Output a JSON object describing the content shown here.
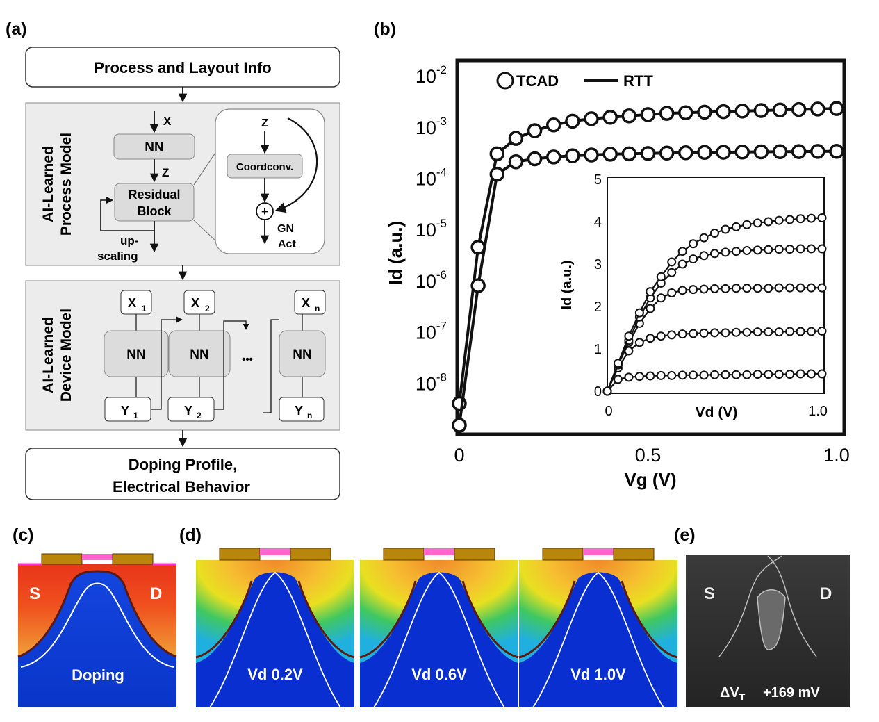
{
  "panels": {
    "a": {
      "label": "(a)",
      "top_box": "Process and Layout Info",
      "process_model": {
        "side_title_1": "AI-Learned",
        "side_title_2": "Process Model",
        "input_x": "X",
        "nn": "NN",
        "z": "Z",
        "residual_1": "Residual",
        "residual_2": "Block",
        "upscaling_1": "up-",
        "upscaling_2": "scaling",
        "inset_z": "Z",
        "coordconv": "Coordconv.",
        "plus": "+",
        "gn": "GN",
        "act": "Act"
      },
      "device_model": {
        "side_title_1": "AI-Learned",
        "side_title_2": "Device Model",
        "inputs": [
          {
            "base": "X",
            "sub": "1"
          },
          {
            "base": "X",
            "sub": "2"
          },
          {
            "base": "X",
            "sub": "n"
          }
        ],
        "nn": "NN",
        "outputs": [
          {
            "base": "Y",
            "sub": "1"
          },
          {
            "base": "Y",
            "sub": "2"
          },
          {
            "base": "Y",
            "sub": "n"
          }
        ],
        "ellipsis": "•••"
      },
      "bottom_box_1": "Doping Profile,",
      "bottom_box_2": "Electrical Behavior"
    },
    "b": {
      "label": "(b)",
      "chart_data": [
        {
          "type": "line",
          "xlabel": "Vg (V)",
          "ylabel": "Id (a.u.)",
          "xlim": [
            0,
            1.0
          ],
          "ylim_log10": [
            -9,
            -1.7
          ],
          "y_scale": "log",
          "x_ticks": [
            "0",
            "0.5",
            "1.0"
          ],
          "y_ticks": [
            {
              "base": "10",
              "exp": "-2"
            },
            {
              "base": "10",
              "exp": "-3"
            },
            {
              "base": "10",
              "exp": "-4"
            },
            {
              "base": "10",
              "exp": "-5"
            },
            {
              "base": "10",
              "exp": "-6"
            },
            {
              "base": "10",
              "exp": "-7"
            },
            {
              "base": "10",
              "exp": "-8"
            }
          ],
          "legend": {
            "placement": "top-left",
            "entries": [
              "TCAD",
              "RTT"
            ]
          },
          "series": [
            {
              "name": "TCAD",
              "marker": "circle",
              "x": [
                0.0,
                0.05,
                0.1,
                0.15,
                0.2,
                0.25,
                0.3,
                0.35,
                0.4,
                0.45,
                0.5,
                0.55,
                0.6,
                0.65,
                0.7,
                0.75,
                0.8,
                0.85,
                0.9,
                0.95,
                1.0
              ],
              "y": [
                4e-09,
                4.5e-06,
                0.0003,
                0.0006,
                0.00085,
                0.0011,
                0.0013,
                0.00145,
                0.00155,
                0.00165,
                0.00175,
                0.00185,
                0.0019,
                0.00195,
                0.002,
                0.00205,
                0.0021,
                0.00215,
                0.0022,
                0.00225,
                0.0023
              ]
            },
            {
              "name": "TCAD",
              "marker": "circle",
              "x": [
                0.0,
                0.05,
                0.1,
                0.15,
                0.2,
                0.25,
                0.3,
                0.35,
                0.4,
                0.45,
                0.5,
                0.55,
                0.6,
                0.65,
                0.7,
                0.75,
                0.8,
                0.85,
                0.9,
                0.95,
                1.0
              ],
              "y": [
                1.5e-09,
                8e-07,
                0.00012,
                0.00021,
                0.00024,
                0.00026,
                0.000275,
                0.000285,
                0.000295,
                0.0003,
                0.000305,
                0.00031,
                0.000315,
                0.00032,
                0.000322,
                0.000325,
                0.000328,
                0.00033,
                0.000332,
                0.000334,
                0.000336
              ]
            }
          ]
        },
        {
          "type": "line",
          "xlabel": "Vd (V)",
          "ylabel": "Id (a.u.)",
          "xlim": [
            0,
            1.0
          ],
          "ylim": [
            0,
            5
          ],
          "x_ticks": [
            "0",
            "1.0"
          ],
          "y_ticks": [
            "0",
            "1",
            "2",
            "3",
            "4",
            "5"
          ],
          "series": [
            {
              "x": [
                0,
                0.05,
                0.1,
                0.15,
                0.2,
                0.25,
                0.3,
                0.35,
                0.4,
                0.45,
                0.5,
                0.55,
                0.6,
                0.65,
                0.7,
                0.75,
                0.8,
                0.85,
                0.9,
                0.95,
                1.0
              ],
              "y": [
                0,
                0.28,
                0.33,
                0.35,
                0.36,
                0.37,
                0.37,
                0.38,
                0.38,
                0.38,
                0.39,
                0.39,
                0.39,
                0.39,
                0.4,
                0.4,
                0.4,
                0.4,
                0.41,
                0.41,
                0.41
              ]
            },
            {
              "x": [
                0,
                0.05,
                0.1,
                0.15,
                0.2,
                0.25,
                0.3,
                0.35,
                0.4,
                0.45,
                0.5,
                0.55,
                0.6,
                0.65,
                0.7,
                0.75,
                0.8,
                0.85,
                0.9,
                0.95,
                1.0
              ],
              "y": [
                0,
                0.55,
                0.95,
                1.15,
                1.25,
                1.3,
                1.33,
                1.35,
                1.36,
                1.37,
                1.38,
                1.38,
                1.39,
                1.39,
                1.4,
                1.4,
                1.4,
                1.41,
                1.41,
                1.41,
                1.42
              ]
            },
            {
              "x": [
                0,
                0.05,
                0.1,
                0.15,
                0.2,
                0.25,
                0.3,
                0.35,
                0.4,
                0.45,
                0.5,
                0.55,
                0.6,
                0.65,
                0.7,
                0.75,
                0.8,
                0.85,
                0.9,
                0.95,
                1.0
              ],
              "y": [
                0,
                0.62,
                1.15,
                1.6,
                1.95,
                2.2,
                2.32,
                2.38,
                2.4,
                2.41,
                2.42,
                2.42,
                2.43,
                2.43,
                2.43,
                2.43,
                2.44,
                2.44,
                2.44,
                2.44,
                2.44
              ]
            },
            {
              "x": [
                0,
                0.05,
                0.1,
                0.15,
                0.2,
                0.25,
                0.3,
                0.35,
                0.4,
                0.45,
                0.5,
                0.55,
                0.6,
                0.65,
                0.7,
                0.75,
                0.8,
                0.85,
                0.9,
                0.95,
                1.0
              ],
              "y": [
                0,
                0.65,
                1.2,
                1.75,
                2.2,
                2.55,
                2.8,
                3.0,
                3.12,
                3.2,
                3.25,
                3.28,
                3.3,
                3.32,
                3.33,
                3.34,
                3.35,
                3.35,
                3.36,
                3.36,
                3.36
              ]
            },
            {
              "x": [
                0,
                0.05,
                0.1,
                0.15,
                0.2,
                0.25,
                0.3,
                0.35,
                0.4,
                0.45,
                0.5,
                0.55,
                0.6,
                0.65,
                0.7,
                0.75,
                0.8,
                0.85,
                0.9,
                0.95,
                1.0
              ],
              "y": [
                0,
                0.66,
                1.3,
                1.85,
                2.35,
                2.7,
                3.05,
                3.3,
                3.48,
                3.62,
                3.73,
                3.82,
                3.88,
                3.93,
                3.97,
                4.0,
                4.03,
                4.05,
                4.07,
                4.08,
                4.09
              ]
            }
          ]
        }
      ]
    },
    "c": {
      "label": "(c)",
      "s": "S",
      "d": "D",
      "caption": "Doping"
    },
    "d": {
      "label": "(d)",
      "captions": [
        "Vd 0.2V",
        "Vd 0.6V",
        "Vd 1.0V"
      ]
    },
    "e": {
      "label": "(e)",
      "s": "S",
      "d": "D",
      "delta": "ΔV",
      "delta_sub": "T",
      "value": "+169 mV"
    }
  },
  "colors": {
    "box_gray": "#ececec",
    "block_gray": "#dcdcdc",
    "red": "#e8351a",
    "blue": "#1b4fd8",
    "gate_gold": "#b8860b",
    "magenta": "#ff33cc"
  }
}
